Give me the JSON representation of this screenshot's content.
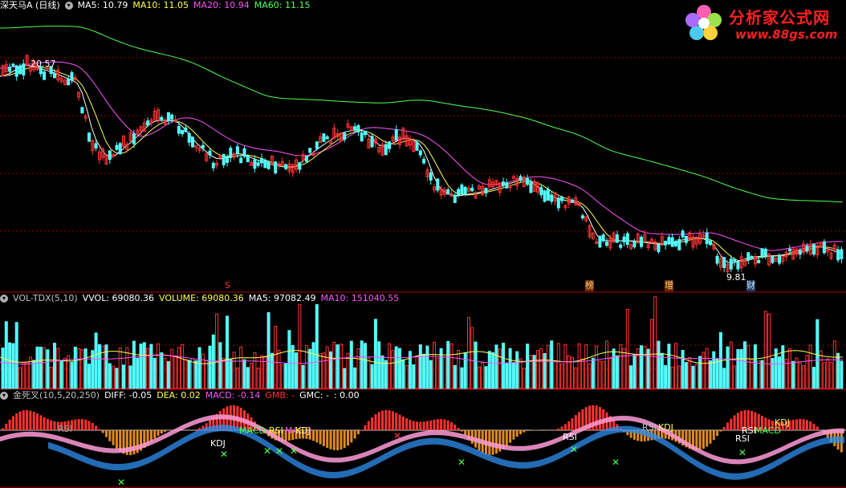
{
  "main_panel": {
    "stock_name": "深天马A (日线)",
    "ma5": "MA5: 10.79",
    "ma10": "MA10: 11.05",
    "ma20": "MA20: 10.94",
    "ma60": "MA60: 11.15",
    "high_label": "20.57",
    "low_label": "9.81",
    "event_markers": [
      "S",
      "榜",
      "增",
      "财"
    ]
  },
  "volume_panel": {
    "name": "VOL-TDX(5,10)",
    "vvol": "VVOL: 69080.36",
    "volume": "VOLUME: 69080.36",
    "ma5": "MA5: 97082.49",
    "ma10": "MA10: 151040.55"
  },
  "macd_panel": {
    "name": "金死叉(10,5,20,250)",
    "diff": "DIFF: -0.05",
    "dea": "DEA: 0.02",
    "macd": "MACD: -0.14",
    "gmb": "GMB: -",
    "gmc": "GMC: -",
    "extra": ": 0.00",
    "signal_labels": [
      "RSI",
      "KDJ",
      "MACD",
      "RSI",
      "MACD",
      "KDJ",
      "RSI",
      "RSI",
      "KDJ",
      "RSI",
      "RSI",
      "MACD",
      "KDJ"
    ]
  },
  "logo": {
    "main": "分析家公式网",
    "sub": "www.88gs.com"
  },
  "colors": {
    "up": "#ff3232",
    "down": "#54fcfc",
    "ma5": "#ffffff",
    "ma10": "#ffff54",
    "ma20": "#ff54ff",
    "ma60": "#54ff54",
    "grid": "#8b0000"
  }
}
